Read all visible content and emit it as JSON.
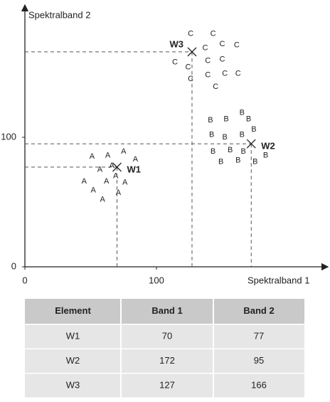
{
  "chart_data": {
    "type": "scatter",
    "xlabel": "Spektralband 1",
    "ylabel": "Spektralband 2",
    "xlim": [
      0,
      227
    ],
    "ylim": [
      0,
      200
    ],
    "xticks": [
      0,
      100
    ],
    "yticks": [
      0,
      100
    ],
    "series": [
      {
        "name": "A",
        "color": "#333333",
        "x": [
          51,
          63,
          75,
          84,
          57,
          66,
          45,
          62,
          69,
          76,
          52,
          59,
          71
        ],
        "y": [
          85,
          86,
          89,
          83,
          75,
          78,
          66,
          66,
          70,
          65,
          59,
          52,
          57
        ]
      },
      {
        "name": "B",
        "color": "#333333",
        "x": [
          141,
          153,
          165,
          170,
          142,
          152,
          165,
          174,
          143,
          156,
          166,
          149,
          162,
          175,
          183
        ],
        "y": [
          113,
          114,
          119,
          114,
          102,
          100,
          102,
          106,
          89,
          90,
          89,
          81,
          82,
          81,
          86
        ]
      },
      {
        "name": "C",
        "color": "#333333",
        "x": [
          126,
          143,
          137,
          150,
          161,
          114,
          124,
          139,
          150,
          126,
          139,
          152,
          162,
          145
        ],
        "y": [
          180,
          180,
          169,
          172,
          171,
          158,
          154,
          159,
          160,
          145,
          148,
          149,
          149,
          139
        ]
      }
    ],
    "centroids": {
      "labels": [
        "W1",
        "W2",
        "W3"
      ],
      "x": [
        70,
        172,
        127
      ],
      "y": [
        77,
        95,
        166
      ]
    }
  },
  "table": {
    "header": [
      "Element",
      "Band 1",
      "Band 2"
    ]
  }
}
